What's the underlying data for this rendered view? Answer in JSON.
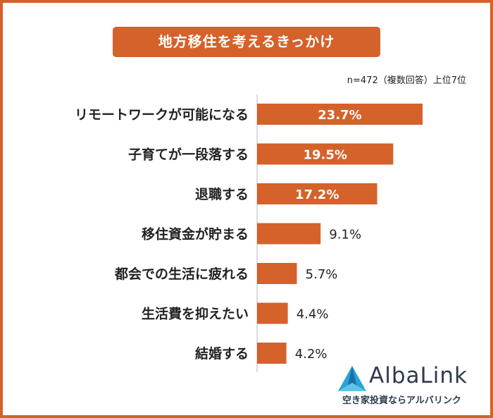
{
  "title": "地方移住を考えるきっかけ",
  "note": "n=472（複数回答）上位7位",
  "brand": {
    "name": "AlbaLink",
    "tagline": "空き家投資ならアルバリンク",
    "colors": {
      "primary": "#2e3b4e",
      "accent": "#2aa3d8"
    },
    "icon": "albalink-triangle-icon"
  },
  "colors": {
    "bar": "#d4622a",
    "frame": "#d4622a",
    "label_inside": "#ffffff",
    "label_outside": "#222222"
  },
  "chart_data": {
    "type": "bar",
    "orientation": "horizontal",
    "categories": [
      "リモートワークが可能になる",
      "子育てが一段落する",
      "退職する",
      "移住資金が貯まる",
      "都会での生活に疲れる",
      "生活費を抑えたい",
      "結婚する"
    ],
    "values": [
      23.7,
      19.5,
      17.2,
      9.1,
      5.7,
      4.4,
      4.2
    ],
    "data_labels": [
      "23.7%",
      "19.5%",
      "17.2%",
      "9.1%",
      "5.7%",
      "4.4%",
      "4.2%"
    ],
    "unit": "%",
    "xlim": [
      0,
      25
    ],
    "grid": false,
    "legend": "none"
  }
}
